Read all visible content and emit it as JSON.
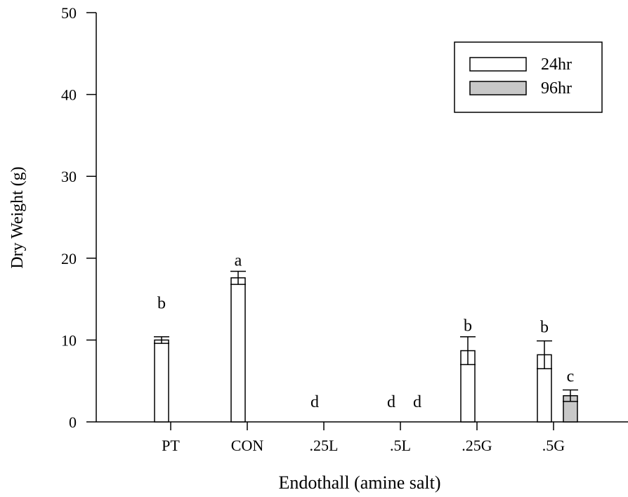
{
  "chart_data": {
    "type": "bar",
    "title": "",
    "xlabel": "Endothall (amine salt)",
    "ylabel": "Dry Weight (g)",
    "ylim": [
      0,
      50
    ],
    "yticks": [
      0,
      10,
      20,
      30,
      40,
      50
    ],
    "grid": false,
    "legend_position": "top-right",
    "categories": [
      "PT",
      "CON",
      ".25L",
      ".5L",
      ".25G",
      ".5G"
    ],
    "series": [
      {
        "name": "24hr",
        "color": "#ffffff",
        "values": [
          10.0,
          17.6,
          0,
          0,
          8.7,
          8.2
        ],
        "errors": [
          0.4,
          0.8,
          0,
          0,
          1.7,
          1.7
        ],
        "significance": [
          "b",
          "a",
          "d",
          "d",
          "b",
          "b"
        ]
      },
      {
        "name": "96hr",
        "color": "#c8c8c8",
        "values": [
          null,
          null,
          null,
          0,
          null,
          3.2
        ],
        "errors": [
          null,
          null,
          null,
          0,
          null,
          0.7
        ],
        "significance": [
          "",
          "",
          "",
          "d",
          "",
          "c"
        ]
      }
    ]
  }
}
